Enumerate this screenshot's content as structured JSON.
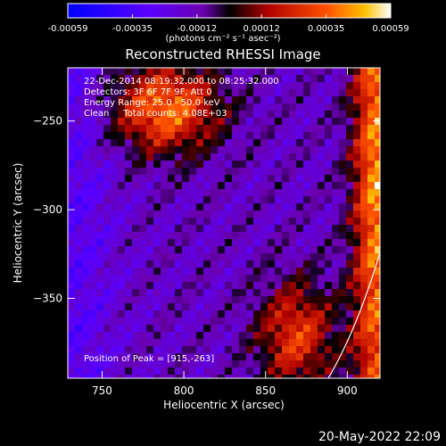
{
  "colorbar": {
    "ticks": [
      "-0.00059",
      "-0.00035",
      "-0.00012",
      "0.00012",
      "0.00035",
      "0.00059"
    ],
    "unit_label": "(photons cm⁻² s⁻¹ asec⁻²)",
    "range": [
      -0.00059,
      0.00059
    ]
  },
  "chart_data": {
    "type": "heatmap",
    "title": "Reconstructed RHESSI Image",
    "xlabel": "Heliocentric X (arcsec)",
    "ylabel": "Heliocentric Y (arcsec)",
    "xlim": [
      729,
      920
    ],
    "ylim": [
      -395,
      -220
    ],
    "xticks": [
      750,
      800,
      850,
      900
    ],
    "yticks": [
      -250,
      -300,
      -350
    ],
    "xtick_labels": [
      "750",
      "800",
      "850",
      "900"
    ],
    "ytick_labels": [
      "−250",
      "−300",
      "−350"
    ],
    "peak": [
      915,
      -263
    ]
  },
  "info": {
    "line1": "22-Dec-2014 08:19:32.000 to 08:25:32.000",
    "line2": "Detectors: 3F 6F 7F 9F, Att 0",
    "line3": "Energy Range: 25.0 - 50.0 keV",
    "line4": "Clean     Total counts: 4.08E+03"
  },
  "peak_text": "Position of Peak = [915,-263]",
  "timestamp": "20-May-2022 22:09"
}
